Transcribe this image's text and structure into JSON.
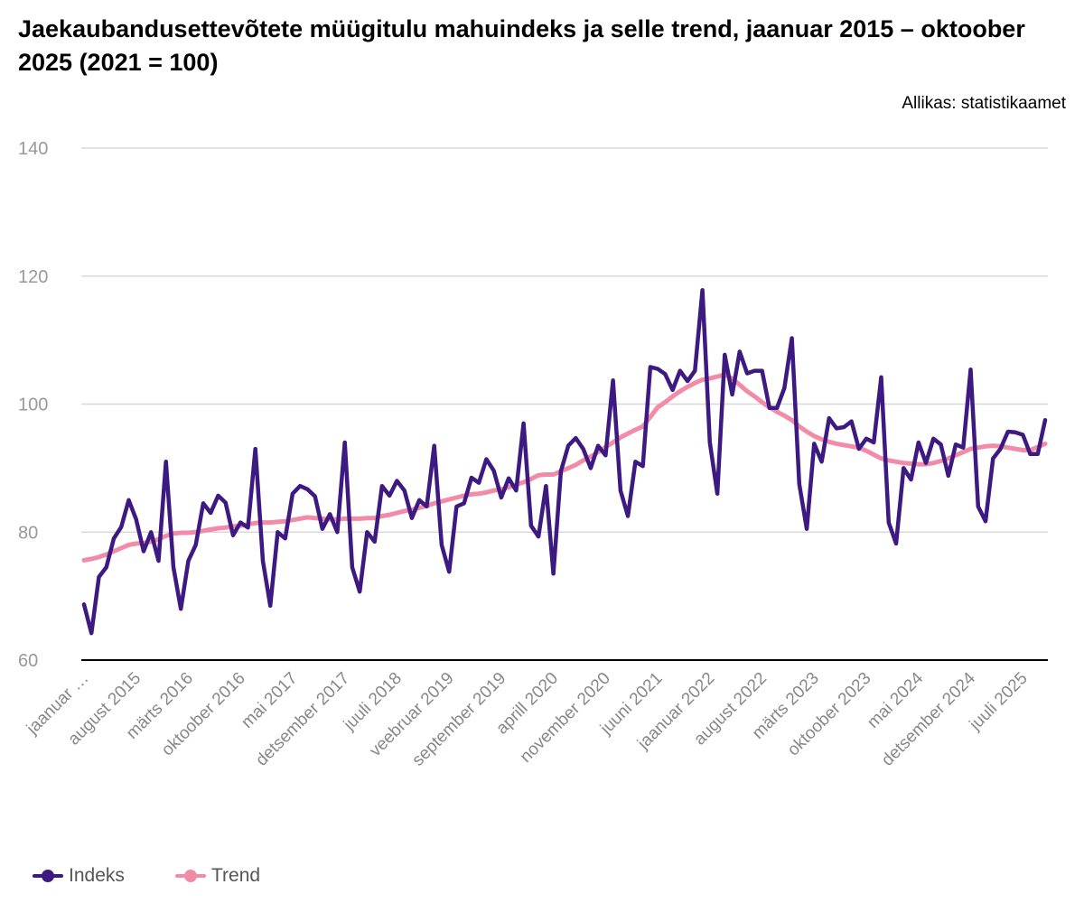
{
  "title": "Jaekaubandusettevõtete müügitulu mahuindeks ja selle trend, jaanuar 2015 – oktoober 2025 (2021 = 100)",
  "source": "Allikas: statistikaamet",
  "chart_data": {
    "type": "line",
    "title": "Jaekaubandusettevõtete müügitulu mahuindeks ja selle trend, jaanuar 2015 – oktoober 2025 (2021 = 100)",
    "ylim": [
      60,
      140
    ],
    "yticks": [
      60,
      80,
      100,
      120,
      140
    ],
    "grid": true,
    "legend_position": "bottom-left",
    "x_tick_labels": [
      "jaanuar …",
      "august 2015",
      "märts 2016",
      "oktoober 2016",
      "mai 2017",
      "detsember 2017",
      "juuli 2018",
      "veebruar 2019",
      "september 2019",
      "aprill 2020",
      "november 2020",
      "juuni 2021",
      "jaanuar 2022",
      "august 2022",
      "märts 2023",
      "oktoober 2023",
      "mai 2024",
      "detsember 2024",
      "juuli 2025"
    ],
    "series": [
      {
        "name": "Indeks",
        "color": "#3d1a82",
        "values": [
          68.7,
          64.2,
          73,
          74.5,
          79,
          80.8,
          85,
          82,
          77,
          80,
          75.5,
          91,
          74.5,
          68,
          75.5,
          78,
          84.5,
          83,
          85.7,
          84.6,
          79.5,
          81.5,
          80.7,
          93,
          75.5,
          68.5,
          80,
          79,
          86,
          87.2,
          86.7,
          85.6,
          80.5,
          82.8,
          80,
          94,
          74.5,
          70.7,
          80,
          78.5,
          87.2,
          85.7,
          88,
          86.5,
          82.2,
          85,
          84,
          93.5,
          78,
          73.8,
          84,
          84.5,
          88.5,
          87.7,
          91.4,
          89.6,
          85.4,
          88.4,
          86.5,
          97,
          81,
          79.3,
          87.2,
          73.5,
          89.5,
          93.5,
          94.7,
          93,
          90,
          93.5,
          92,
          103.7,
          86.5,
          82.5,
          91,
          90.3,
          105.8,
          105.5,
          104.7,
          102.2,
          105.2,
          103.6,
          105.2,
          117.8,
          94,
          86,
          107.7,
          101.5,
          108.2,
          104.8,
          105.2,
          105.2,
          99.4,
          99.4,
          102.5,
          110.3,
          87.5,
          80.5,
          93.8,
          91,
          97.8,
          96.2,
          96.4,
          97.3,
          93,
          94.6,
          94,
          104.2,
          81.5,
          78.2,
          90,
          88.2,
          94,
          90.8,
          94.6,
          93.7,
          88.8,
          93.7,
          93.2,
          105.4,
          84,
          81.7,
          91.5,
          93,
          95.7,
          95.6,
          95.2,
          92.2,
          92.2,
          97.5
        ]
      },
      {
        "name": "Trend",
        "color": "#f28ba8",
        "values": [
          75.6,
          75.8,
          76.1,
          76.5,
          77.0,
          77.5,
          78.0,
          78.2,
          78.3,
          78.5,
          78.9,
          79.4,
          79.8,
          79.9,
          79.9,
          80.0,
          80.2,
          80.4,
          80.6,
          80.7,
          80.9,
          81.0,
          81.2,
          81.4,
          81.5,
          81.5,
          81.6,
          81.7,
          81.9,
          82.1,
          82.3,
          82.2,
          82.1,
          82.0,
          82.0,
          82.1,
          82.1,
          82.1,
          82.2,
          82.2,
          82.5,
          82.7,
          83.0,
          83.3,
          83.5,
          83.8,
          84.1,
          84.5,
          84.8,
          85.1,
          85.4,
          85.7,
          85.9,
          86.0,
          86.2,
          86.5,
          86.7,
          87.0,
          87.4,
          87.8,
          88.3,
          88.9,
          89.0,
          89.0,
          89.5,
          90.0,
          90.5,
          91.2,
          91.8,
          92.5,
          93.3,
          94.0,
          94.8,
          95.4,
          96.0,
          96.5,
          98.0,
          99.5,
          100.3,
          101.2,
          102.0,
          102.7,
          103.3,
          103.8,
          104.0,
          104.3,
          104.6,
          104.0,
          103.0,
          102.0,
          101.2,
          100.3,
          99.5,
          98.8,
          98.2,
          97.5,
          96.5,
          95.7,
          95.0,
          94.5,
          94.1,
          93.8,
          93.6,
          93.4,
          93.2,
          92.7,
          92.1,
          91.5,
          91.2,
          91.0,
          90.8,
          90.7,
          90.6,
          90.6,
          90.8,
          91.1,
          91.5,
          92.0,
          92.5,
          93.0,
          93.2,
          93.4,
          93.5,
          93.4,
          93.2,
          93.0,
          92.8,
          92.8,
          93.3,
          93.8
        ]
      }
    ]
  }
}
